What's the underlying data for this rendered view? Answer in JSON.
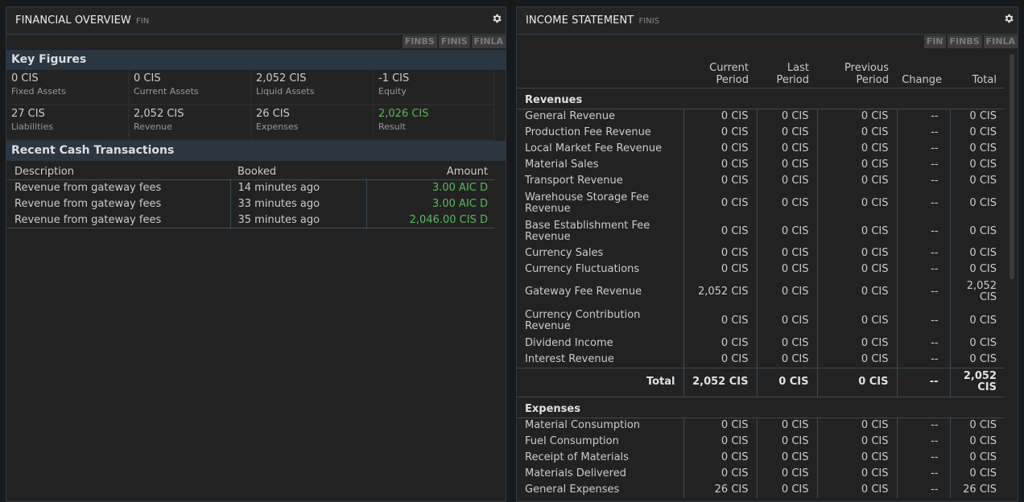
{
  "left_panel": {
    "title": "FINANCIAL OVERVIEW",
    "command": "FIN",
    "buttons": [
      "FINBS",
      "FINIS",
      "FINLA"
    ],
    "key_figures_title": "Key Figures",
    "key_figures": [
      {
        "value": "0 CIS",
        "label": "Fixed Assets"
      },
      {
        "value": "0 CIS",
        "label": "Current Assets"
      },
      {
        "value": "2,052 CIS",
        "label": "Liquid Assets"
      },
      {
        "value": "-1 CIS",
        "label": "Equity"
      },
      {
        "value": "27 CIS",
        "label": "Liabilities"
      },
      {
        "value": "2,052 CIS",
        "label": "Revenue"
      },
      {
        "value": "26 CIS",
        "label": "Expenses"
      },
      {
        "value": "2,026 CIS",
        "label": "Result"
      }
    ],
    "transactions_title": "Recent Cash Transactions",
    "transactions_headers": {
      "description": "Description",
      "booked": "Booked",
      "amount": "Amount"
    },
    "transactions": [
      {
        "description": "Revenue from gateway fees",
        "booked": "14 minutes ago",
        "amount": "3.00 AIC D"
      },
      {
        "description": "Revenue from gateway fees",
        "booked": "33 minutes ago",
        "amount": "3.00 AIC D"
      },
      {
        "description": "Revenue from gateway fees",
        "booked": "35 minutes ago",
        "amount": "2,046.00 CIS D"
      }
    ]
  },
  "right_panel": {
    "title": "INCOME STATEMENT",
    "command": "FINIS",
    "buttons": [
      "FIN",
      "FINBS",
      "FINLA"
    ],
    "headers": {
      "current": "Current Period",
      "last": "Last Period",
      "previous": "Previous Period",
      "change": "Change",
      "total": "Total"
    },
    "revenues_title": "Revenues",
    "revenues": [
      {
        "label": "General Revenue",
        "current": "0 CIS",
        "last": "0 CIS",
        "previous": "0 CIS",
        "change": "--",
        "total": "0 CIS"
      },
      {
        "label": "Production Fee Revenue",
        "current": "0 CIS",
        "last": "0 CIS",
        "previous": "0 CIS",
        "change": "--",
        "total": "0 CIS"
      },
      {
        "label": "Local Market Fee Revenue",
        "current": "0 CIS",
        "last": "0 CIS",
        "previous": "0 CIS",
        "change": "--",
        "total": "0 CIS"
      },
      {
        "label": "Material Sales",
        "current": "0 CIS",
        "last": "0 CIS",
        "previous": "0 CIS",
        "change": "--",
        "total": "0 CIS"
      },
      {
        "label": "Transport Revenue",
        "current": "0 CIS",
        "last": "0 CIS",
        "previous": "0 CIS",
        "change": "--",
        "total": "0 CIS"
      },
      {
        "label": "Warehouse Storage Fee Revenue",
        "current": "0 CIS",
        "last": "0 CIS",
        "previous": "0 CIS",
        "change": "--",
        "total": "0 CIS"
      },
      {
        "label": "Base Establishment Fee Revenue",
        "current": "0 CIS",
        "last": "0 CIS",
        "previous": "0 CIS",
        "change": "--",
        "total": "0 CIS"
      },
      {
        "label": "Currency Sales",
        "current": "0 CIS",
        "last": "0 CIS",
        "previous": "0 CIS",
        "change": "--",
        "total": "0 CIS"
      },
      {
        "label": "Currency Fluctuations",
        "current": "0 CIS",
        "last": "0 CIS",
        "previous": "0 CIS",
        "change": "--",
        "total": "0 CIS"
      },
      {
        "label": "Gateway Fee Revenue",
        "current": "2,052 CIS",
        "last": "0 CIS",
        "previous": "0 CIS",
        "change": "--",
        "total": "2,052 CIS"
      },
      {
        "label": "Currency Contribution Revenue",
        "current": "0 CIS",
        "last": "0 CIS",
        "previous": "0 CIS",
        "change": "--",
        "total": "0 CIS"
      },
      {
        "label": "Dividend Income",
        "current": "0 CIS",
        "last": "0 CIS",
        "previous": "0 CIS",
        "change": "--",
        "total": "0 CIS"
      },
      {
        "label": "Interest Revenue",
        "current": "0 CIS",
        "last": "0 CIS",
        "previous": "0 CIS",
        "change": "--",
        "total": "0 CIS"
      }
    ],
    "revenues_total": {
      "label": "Total",
      "current": "2,052 CIS",
      "last": "0 CIS",
      "previous": "0 CIS",
      "change": "--",
      "total": "2,052 CIS"
    },
    "expenses_title": "Expenses",
    "expenses": [
      {
        "label": "Material Consumption",
        "current": "0 CIS",
        "last": "0 CIS",
        "previous": "0 CIS",
        "change": "--",
        "total": "0 CIS"
      },
      {
        "label": "Fuel Consumption",
        "current": "0 CIS",
        "last": "0 CIS",
        "previous": "0 CIS",
        "change": "--",
        "total": "0 CIS"
      },
      {
        "label": "Receipt of Materials",
        "current": "0 CIS",
        "last": "0 CIS",
        "previous": "0 CIS",
        "change": "--",
        "total": "0 CIS"
      },
      {
        "label": "Materials Delivered",
        "current": "0 CIS",
        "last": "0 CIS",
        "previous": "0 CIS",
        "change": "--",
        "total": "0 CIS"
      },
      {
        "label": "General Expenses",
        "current": "26 CIS",
        "last": "0 CIS",
        "previous": "0 CIS",
        "change": "--",
        "total": "26 CIS"
      }
    ]
  },
  "colors": {
    "positive": "#5cb85c",
    "section_bg": "#2a3640",
    "panel_bg": "#222222"
  }
}
